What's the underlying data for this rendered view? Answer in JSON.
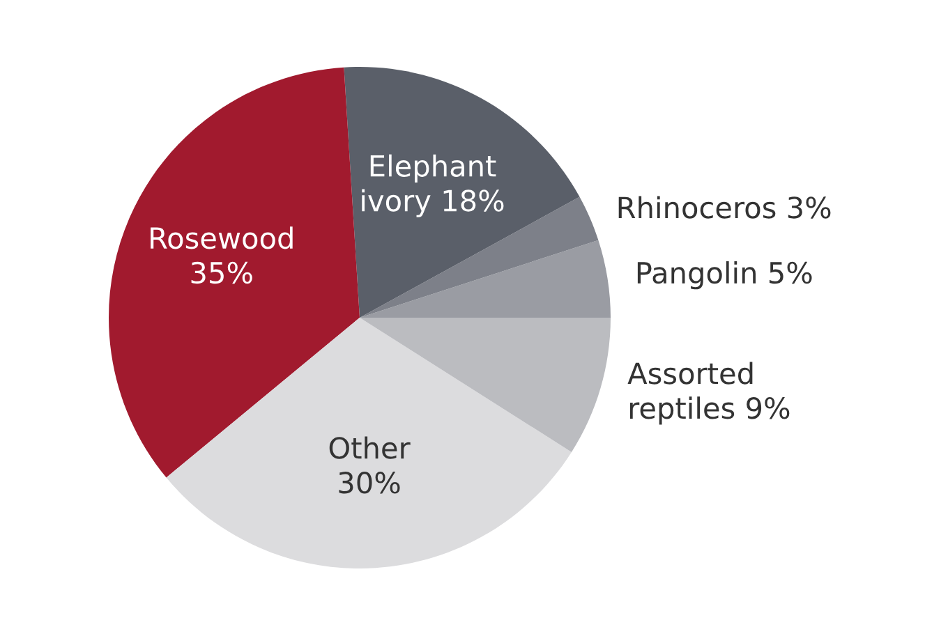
{
  "chart_data": {
    "type": "pie",
    "categories": [
      "Pangolin",
      "Rhinoceros",
      "Elephant ivory",
      "Rosewood",
      "Other",
      "Assorted reptiles"
    ],
    "values": [
      5,
      3,
      18,
      35,
      30,
      9
    ],
    "value_labels": [
      "5%",
      "3%",
      "18%",
      "35%",
      "30%",
      "9%"
    ],
    "colors": [
      "#9a9ca3",
      "#7d8089",
      "#5a5f69",
      "#a11a2e",
      "#dcdcde",
      "#bbbcc0"
    ]
  }
}
